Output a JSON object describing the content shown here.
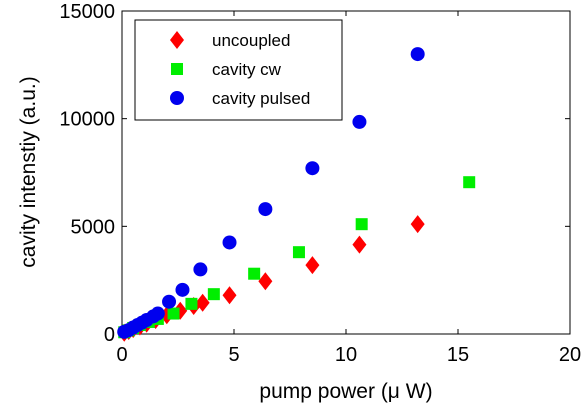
{
  "chart_data": {
    "type": "scatter",
    "title": "",
    "xlabel": "pump power (μ W)",
    "ylabel": "cavity intenstiy (a.u.)",
    "xlim": [
      0,
      20
    ],
    "ylim": [
      0,
      15000
    ],
    "x_ticks": [
      "0",
      "5",
      "10",
      "15",
      "20"
    ],
    "y_ticks": [
      "0",
      "5000",
      "10000",
      "15000"
    ],
    "grid": false,
    "legend_position": "top-left",
    "series": [
      {
        "name": "uncoupled",
        "marker": "diamond",
        "color": "#ff0000",
        "points": [
          [
            0.1,
            60
          ],
          [
            0.3,
            140
          ],
          [
            0.5,
            230
          ],
          [
            0.8,
            350
          ],
          [
            1.1,
            480
          ],
          [
            1.5,
            650
          ],
          [
            2.0,
            870
          ],
          [
            2.6,
            1080
          ],
          [
            3.2,
            1300
          ],
          [
            3.6,
            1450
          ],
          [
            4.8,
            1800
          ],
          [
            6.4,
            2450
          ],
          [
            8.5,
            3200
          ],
          [
            10.6,
            4150
          ],
          [
            13.2,
            5100
          ]
        ]
      },
      {
        "name": "cavity cw",
        "marker": "square",
        "color": "#00ee00",
        "points": [
          [
            0.1,
            80
          ],
          [
            0.3,
            170
          ],
          [
            0.5,
            280
          ],
          [
            0.8,
            420
          ],
          [
            1.2,
            560
          ],
          [
            1.6,
            700
          ],
          [
            2.3,
            950
          ],
          [
            3.1,
            1400
          ],
          [
            4.1,
            1850
          ],
          [
            5.9,
            2800
          ],
          [
            7.9,
            3800
          ],
          [
            10.7,
            5100
          ],
          [
            15.5,
            7050
          ]
        ]
      },
      {
        "name": "cavity pulsed",
        "marker": "circle",
        "color": "#0000ee",
        "points": [
          [
            0.1,
            100
          ],
          [
            0.3,
            180
          ],
          [
            0.5,
            300
          ],
          [
            0.7,
            420
          ],
          [
            0.9,
            530
          ],
          [
            1.1,
            650
          ],
          [
            1.4,
            820
          ],
          [
            1.6,
            950
          ],
          [
            2.1,
            1500
          ],
          [
            2.7,
            2050
          ],
          [
            3.5,
            3000
          ],
          [
            4.8,
            4250
          ],
          [
            6.4,
            5800
          ],
          [
            8.5,
            7700
          ],
          [
            10.6,
            9850
          ],
          [
            13.2,
            13000
          ]
        ]
      }
    ]
  }
}
